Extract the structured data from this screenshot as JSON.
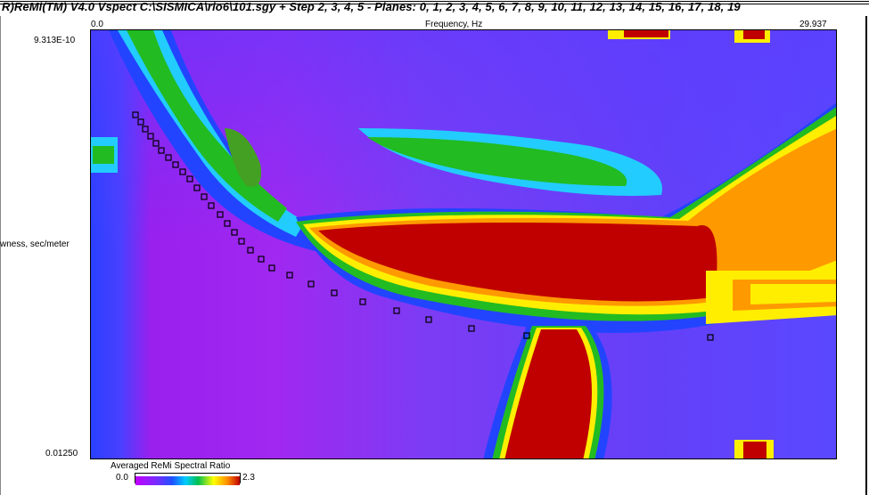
{
  "window": {
    "title": "R)ReMi(TM) V4.0 Vspect  C:\\SISMICA\\rio6\\101.sgy + Step 2, 3, 4, 5 - Planes: 0, 1, 2, 3, 4, 5, 6, 7, 8, 9, 10, 11, 12, 13, 14, 15, 16, 17, 18, 19"
  },
  "plot": {
    "x_axis": {
      "label": "Frequency, Hz",
      "min_label": "0.0",
      "max_label": "29.937"
    },
    "y_axis": {
      "label": "wness, sec/meter",
      "top_label": "9.313E-10",
      "bottom_label": "0.01250"
    }
  },
  "colorbar": {
    "title": "Averaged ReMi Spectral Ratio",
    "min_label": "0.0",
    "max_label": "2.3",
    "colors": [
      "#c000ff",
      "#7a2cff",
      "#2050ff",
      "#00ccff",
      "#00c050",
      "#ffff00",
      "#ff9000",
      "#c00000"
    ]
  },
  "colors": {
    "background": "#7a3cf0",
    "low": "#b020f0",
    "blue": "#2244ff",
    "cyan": "#22ccff",
    "green": "#22bb22",
    "yellow": "#ffee00",
    "orange": "#ff9900",
    "red": "#c00000"
  },
  "icons": {
    "picks": "square-marker-icon"
  }
}
